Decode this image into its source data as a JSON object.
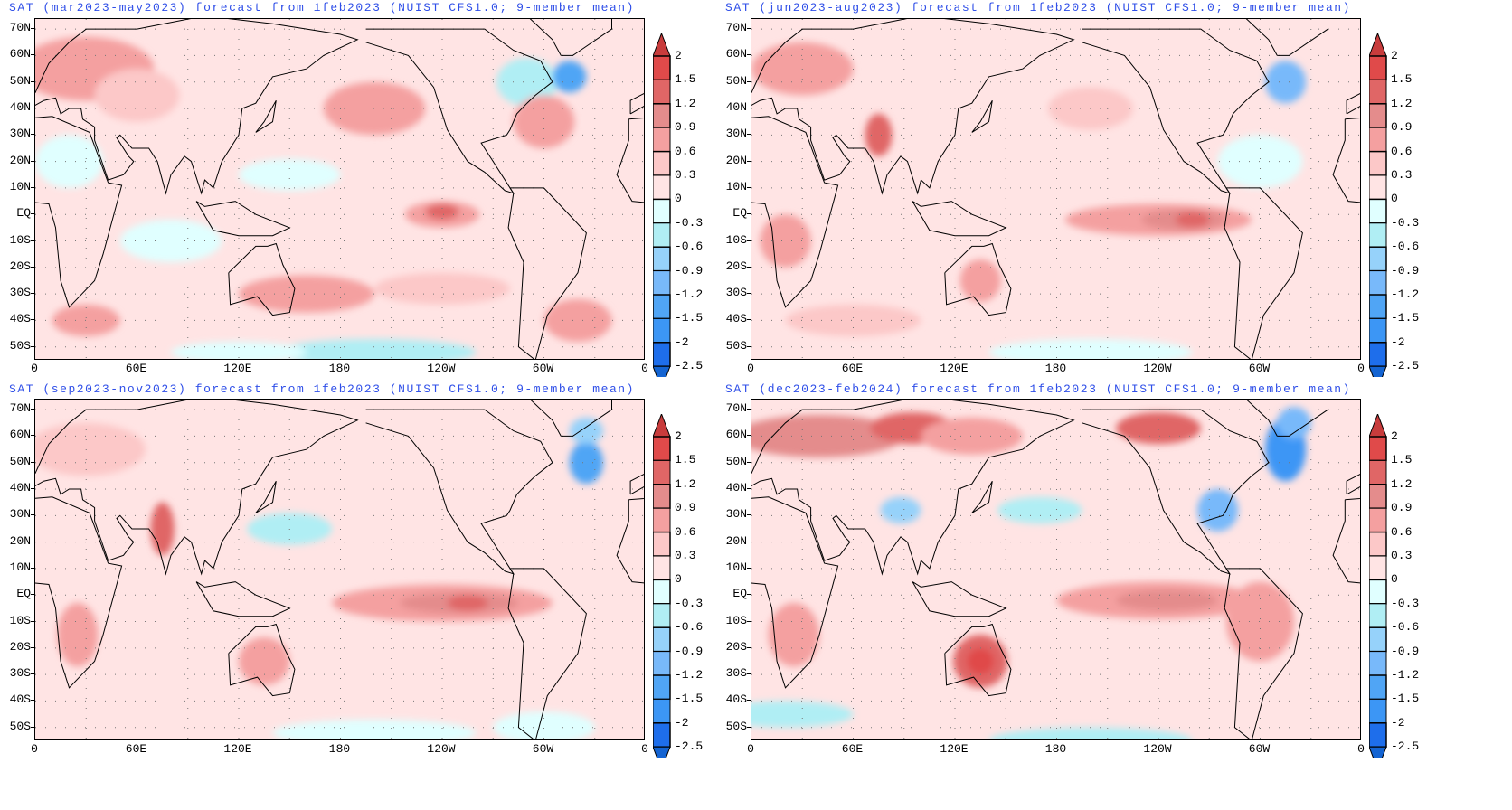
{
  "panels": [
    {
      "title": "SAT (mar2023-may2023) forecast from 1feb2023 (NUIST CFS1.0; 9-member mean)"
    },
    {
      "title": "SAT (jun2023-aug2023) forecast from 1feb2023 (NUIST CFS1.0; 9-member mean)"
    },
    {
      "title": "SAT (sep2023-nov2023) forecast from 1feb2023 (NUIST CFS1.0; 9-member mean)"
    },
    {
      "title": "SAT (dec2023-feb2024) forecast from 1feb2023 (NUIST CFS1.0; 9-member mean)"
    }
  ],
  "axes": {
    "lat_labels": [
      "70N",
      "60N",
      "50N",
      "40N",
      "30N",
      "20N",
      "10N",
      "EQ",
      "10S",
      "20S",
      "30S",
      "40S",
      "50S"
    ],
    "lon_labels": [
      "0",
      "60E",
      "120E",
      "180",
      "120W",
      "60W",
      "0"
    ]
  },
  "colorbar": {
    "labels": [
      "2",
      "1.5",
      "1.2",
      "0.9",
      "0.6",
      "0.3",
      "0",
      "-0.3",
      "-0.6",
      "-0.9",
      "-1.2",
      "-1.5",
      "-2",
      "-2.5"
    ],
    "colors": [
      "#c83c3c",
      "#e04a4a",
      "#e06666",
      "#e48c8c",
      "#f4a0a0",
      "#fcc8c8",
      "#ffe4e4",
      "#e0ffff",
      "#b0eef4",
      "#96d2fa",
      "#78b9fa",
      "#50a5f5",
      "#3c96f5",
      "#1e6eeb",
      "#1464d2"
    ]
  }
}
